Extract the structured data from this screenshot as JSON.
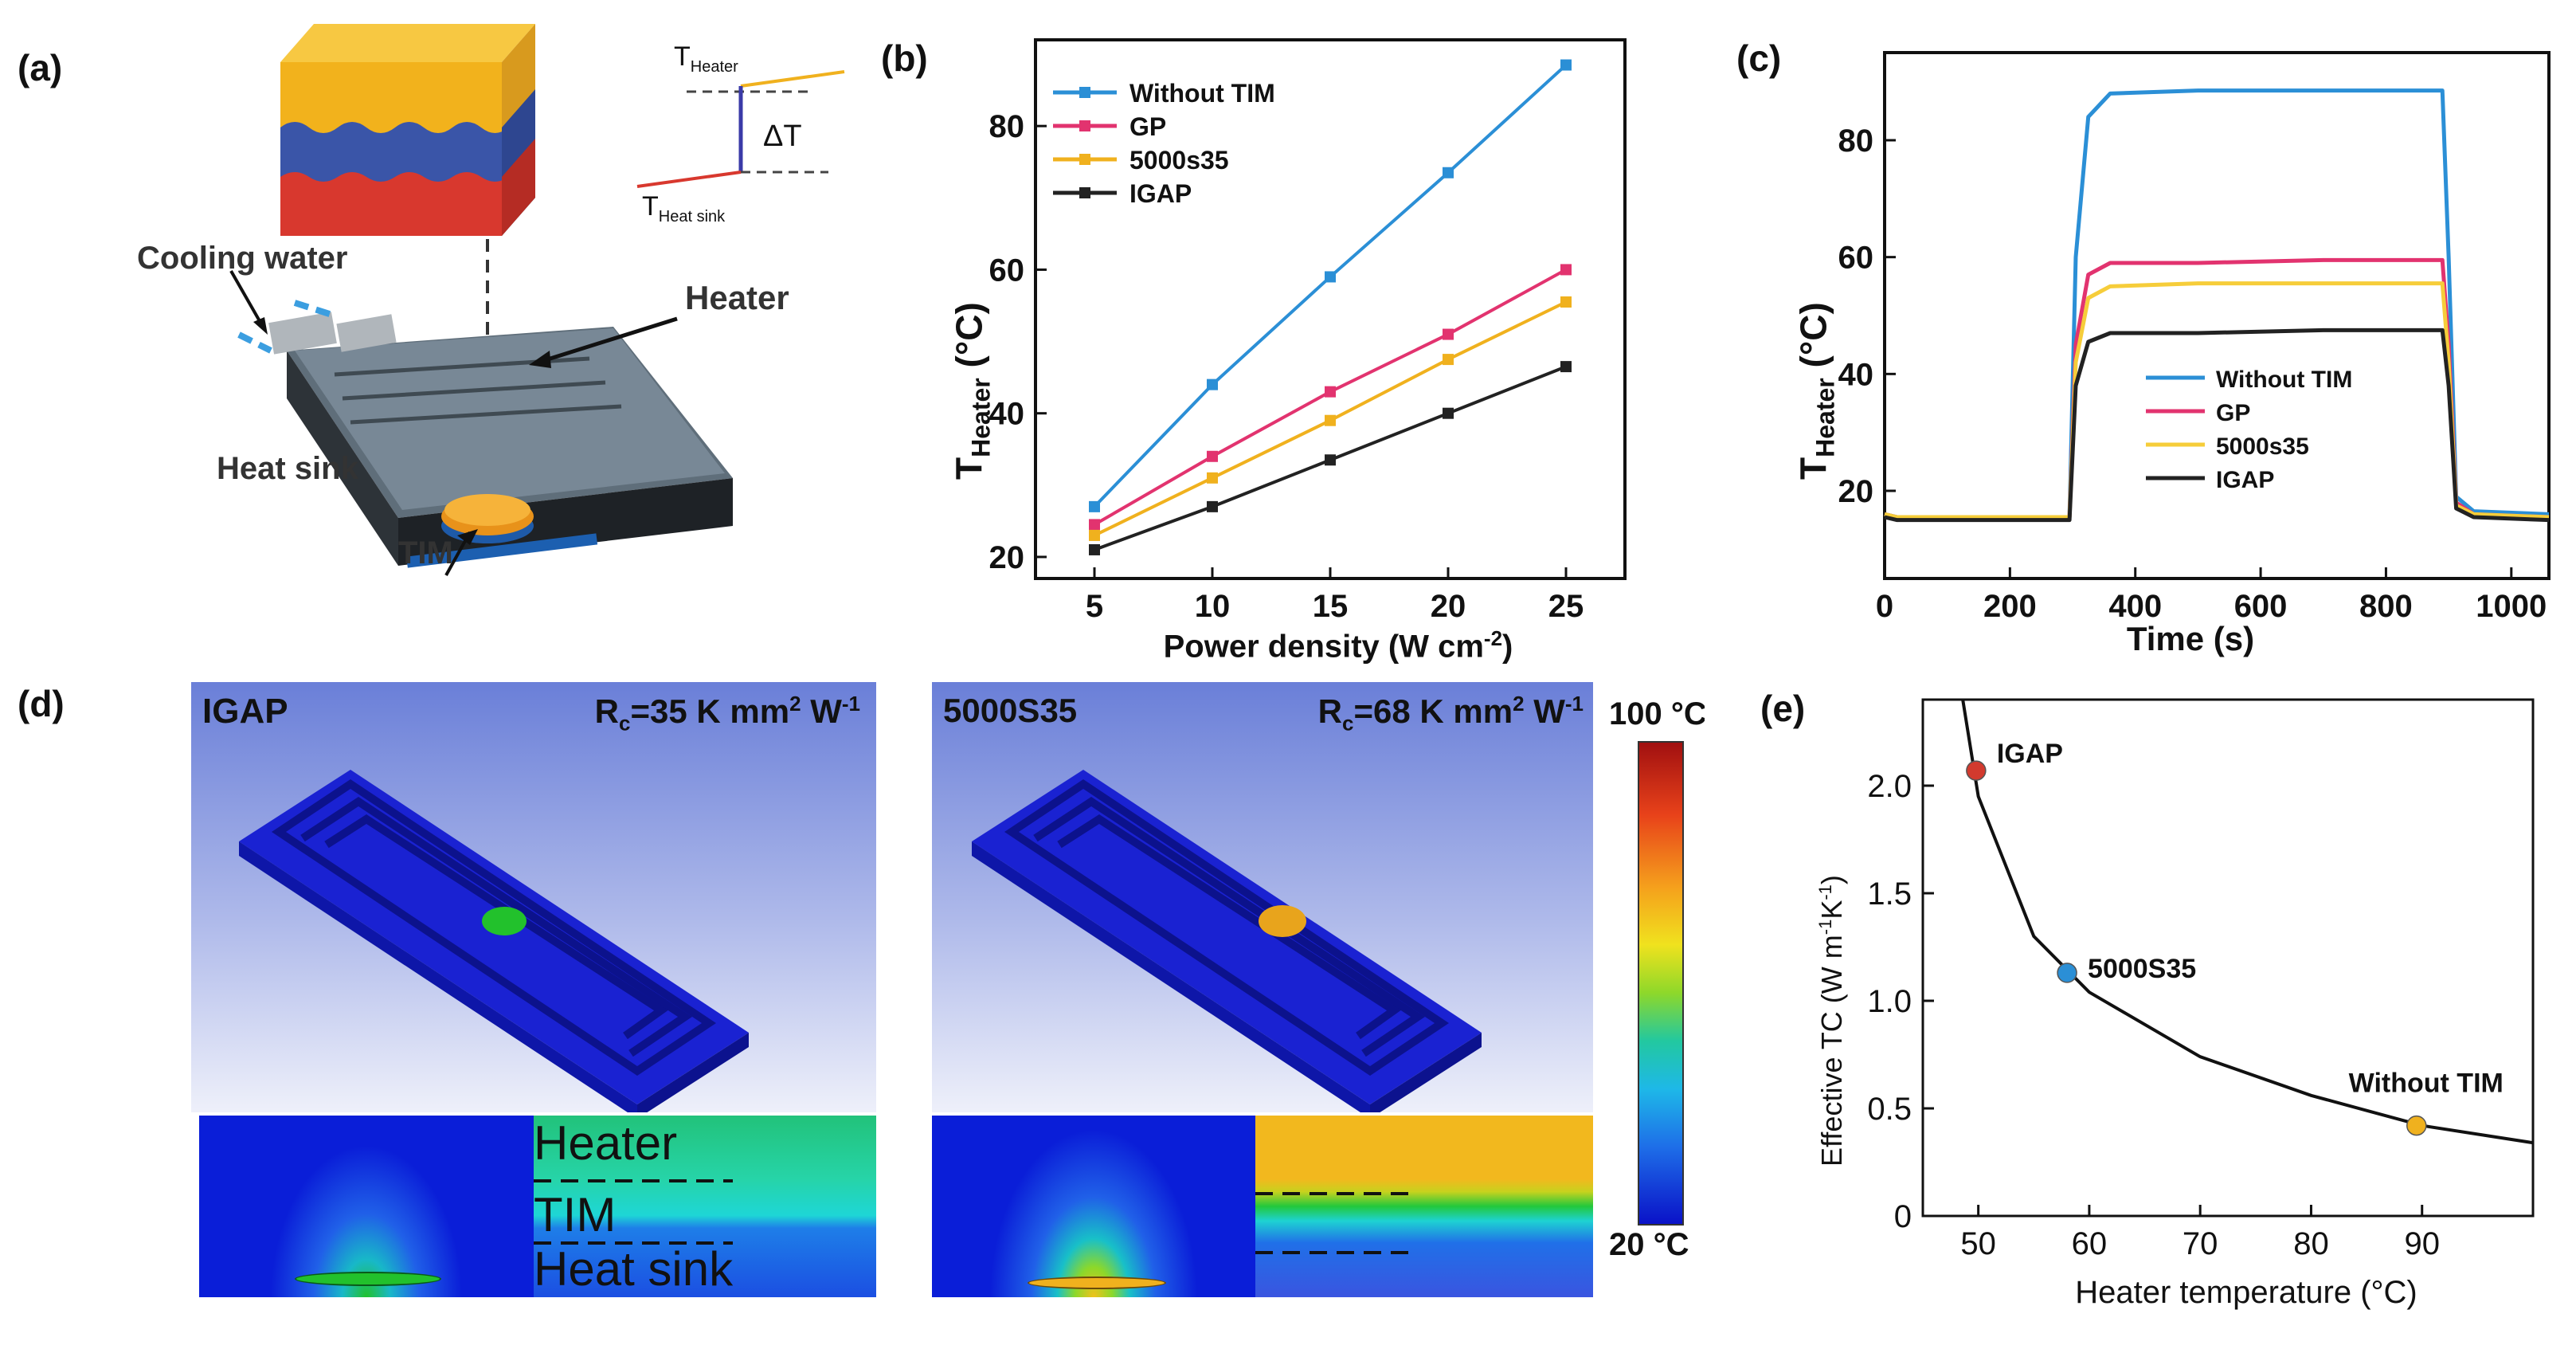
{
  "panel_a": {
    "label": "(a)",
    "cooling_water": "Cooling water",
    "heater": "Heater",
    "heat_sink": "Heat sink",
    "tim": "TIM",
    "inset_t": "T",
    "inset_heater_sub": "Heater",
    "inset_heatsink_sub": "Heat sink",
    "inset_delta": "ΔT"
  },
  "panel_b": {
    "label": "(b)",
    "ylabel_main": "T",
    "ylabel_sub": "Heater",
    "ylabel_unit": "(°C)",
    "xlabel_text": "Power density (W cm",
    "xlabel_sup": "-2",
    "xlabel_end": ")"
  },
  "panel_c": {
    "label": "(c)",
    "ylabel_main": "T",
    "ylabel_sub": "Heater",
    "ylabel_unit": "(°C)",
    "xlabel": "Time (s)"
  },
  "panel_d": {
    "label": "(d)",
    "left_title": "IGAP",
    "left_rc_prefix": "R",
    "left_rc_sub": "c",
    "left_rc_text": "=35 K mm",
    "left_rc_sup1": "2",
    "left_rc_text2": " W",
    "left_rc_sup2": "-1",
    "right_title": "5000S35",
    "right_rc_prefix": "R",
    "right_rc_sub": "c",
    "right_rc_text": "=68 K mm",
    "right_rc_sup1": "2",
    "right_rc_text2": " W",
    "right_rc_sup2": "-1",
    "cross_heater": "Heater",
    "cross_tim": "TIM",
    "cross_heatsink": "Heat sink",
    "colorbar_max": "100 °C",
    "colorbar_min": "20 °C",
    "colors": {
      "cold": "#0a12c8",
      "green": "#22c12c",
      "orange": "#f2b01c",
      "hot": "#a11010"
    }
  },
  "panel_e": {
    "label": "(e)",
    "ylabel": "Effective TC (W m",
    "ylabel_sup1": "-1",
    "ylabel_mid": "K",
    "ylabel_sup2": "-1",
    "ylabel_end": ")",
    "xlabel": "Heater temperature (°C)"
  },
  "chart_data": [
    {
      "type": "line",
      "panel": "b",
      "xlabel": "Power density (W cm-2)",
      "ylabel": "T_Heater (°C)",
      "x": [
        5,
        10,
        15,
        20,
        25
      ],
      "xlim": [
        2.5,
        27.5
      ],
      "ylim": [
        17,
        92
      ],
      "xticks": [
        5,
        10,
        15,
        20,
        25
      ],
      "yticks": [
        20,
        40,
        60,
        80
      ],
      "legend_position": "top-left",
      "series": [
        {
          "name": "Without TIM",
          "color": "#2b8fd6",
          "values": [
            27,
            44,
            59,
            73.5,
            88.5
          ]
        },
        {
          "name": "GP",
          "color": "#e2336f",
          "values": [
            24.5,
            34,
            43,
            51,
            60
          ]
        },
        {
          "name": "5000s35",
          "color": "#f0b11e",
          "values": [
            23,
            31,
            39,
            47.5,
            55.5
          ]
        },
        {
          "name": "IGAP",
          "color": "#222222",
          "values": [
            21,
            27,
            33.5,
            40,
            46.5
          ]
        }
      ]
    },
    {
      "type": "line",
      "panel": "c",
      "xlabel": "Time (s)",
      "ylabel": "T_Heater (°C)",
      "xlim": [
        0,
        1060
      ],
      "ylim": [
        5,
        95
      ],
      "xticks": [
        0,
        200,
        400,
        600,
        800,
        1000
      ],
      "yticks": [
        20,
        40,
        60,
        80
      ],
      "legend_position": "bottom-center",
      "series": [
        {
          "name": "Without TIM",
          "color": "#2b8fd6",
          "x": [
            0,
            20,
            295,
            305,
            325,
            360,
            500,
            700,
            890,
            900,
            912,
            940,
            1060
          ],
          "y": [
            16,
            15.5,
            15.5,
            60,
            84,
            88,
            88.5,
            88.5,
            88.5,
            60,
            19,
            16.5,
            16
          ]
        },
        {
          "name": "GP",
          "color": "#e2336f",
          "x": [
            0,
            20,
            295,
            305,
            325,
            360,
            500,
            700,
            890,
            900,
            912,
            940,
            1060
          ],
          "y": [
            16,
            15.5,
            15.5,
            45,
            57,
            59,
            59,
            59.5,
            59.5,
            45,
            18,
            16,
            15.5
          ]
        },
        {
          "name": "5000s35",
          "color": "#f6cd3a",
          "x": [
            0,
            20,
            295,
            305,
            325,
            360,
            500,
            700,
            890,
            900,
            912,
            940,
            1060
          ],
          "y": [
            16,
            15.5,
            15.5,
            42,
            53,
            55,
            55.5,
            55.5,
            55.5,
            42,
            17.5,
            16,
            15.5
          ]
        },
        {
          "name": "IGAP",
          "color": "#222222",
          "x": [
            0,
            20,
            295,
            305,
            325,
            360,
            500,
            700,
            890,
            900,
            912,
            940,
            1060
          ],
          "y": [
            15.5,
            15,
            15,
            38,
            45.5,
            47,
            47,
            47.5,
            47.5,
            38,
            17,
            15.5,
            15
          ]
        }
      ]
    },
    {
      "type": "scatter",
      "panel": "e",
      "xlabel": "Heater temperature (°C)",
      "ylabel": "Effective TC (W m-1K-1)",
      "xlim": [
        45,
        100
      ],
      "ylim": [
        0,
        2.4
      ],
      "xticks": [
        50,
        60,
        70,
        80,
        90
      ],
      "yticks": [
        0,
        0.5,
        1.0,
        1.5,
        2.0
      ],
      "ytick_labels": [
        "0",
        "0.5",
        "1.0",
        "1.5",
        "2.0"
      ],
      "fit_curve": {
        "color": "#111111",
        "form": "k/(T-Tc)",
        "points": [
          [
            48.6,
            2.4
          ],
          [
            50,
            1.95
          ],
          [
            55,
            1.3
          ],
          [
            60,
            1.04
          ],
          [
            70,
            0.74
          ],
          [
            80,
            0.56
          ],
          [
            90,
            0.42
          ],
          [
            100,
            0.34
          ]
        ]
      },
      "points": [
        {
          "name": "IGAP",
          "x": 49.8,
          "y": 2.07,
          "color": "#d23a2e"
        },
        {
          "name": "5000S35",
          "x": 58,
          "y": 1.13,
          "color": "#2b8fd6"
        },
        {
          "name": "Without TIM",
          "x": 89.5,
          "y": 0.42,
          "color": "#f0b11e"
        }
      ]
    }
  ]
}
